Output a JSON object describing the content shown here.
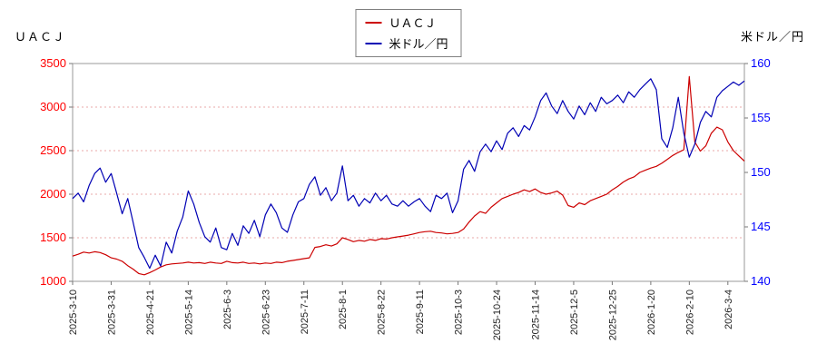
{
  "page": {
    "title_left": "ＵＡＣＪ",
    "title_right": "米ドル／円"
  },
  "legend": {
    "items": [
      {
        "label": "ＵＡＣＪ",
        "color": "#cc0000"
      },
      {
        "label": "米ドル／円",
        "color": "#0000b4"
      }
    ]
  },
  "chart_data": {
    "type": "line",
    "title": "",
    "grid": true,
    "grid_color": "#e8a8a8",
    "border_color": "#999999",
    "x_tick_labels": [
      "2025-3-10",
      "2025-3-31",
      "2025-4-21",
      "2025-5-14",
      "2025-6-3",
      "2025-6-23",
      "2025-7-11",
      "2025-8-1",
      "2025-8-22",
      "2025-9-11",
      "2025-10-3",
      "2025-10-24",
      "2025-11-14",
      "2025-12-5",
      "2025-12-25",
      "2026-1-20",
      "2026-2-10",
      "2026-3-4"
    ],
    "tick_every": 7,
    "left_axis": {
      "label": "ＵＡＣＪ",
      "min": 1000,
      "max": 3500,
      "ticks": [
        1000,
        1500,
        2000,
        2500,
        3000,
        3500
      ],
      "color": "#ff0000"
    },
    "right_axis": {
      "label": "米ドル／円",
      "min": 140,
      "max": 160,
      "ticks": [
        140,
        145,
        150,
        155,
        160
      ],
      "color": "#0000ff"
    },
    "series": [
      {
        "name": "ＵＡＣＪ",
        "axis": "left",
        "color": "#cc0000",
        "values": [
          1290,
          1310,
          1335,
          1325,
          1340,
          1330,
          1305,
          1270,
          1255,
          1230,
          1180,
          1140,
          1090,
          1075,
          1100,
          1130,
          1165,
          1190,
          1200,
          1205,
          1210,
          1220,
          1210,
          1215,
          1205,
          1220,
          1210,
          1205,
          1230,
          1215,
          1210,
          1220,
          1205,
          1210,
          1200,
          1210,
          1205,
          1220,
          1215,
          1230,
          1240,
          1250,
          1260,
          1270,
          1390,
          1400,
          1420,
          1405,
          1430,
          1500,
          1480,
          1455,
          1470,
          1460,
          1480,
          1470,
          1490,
          1485,
          1500,
          1510,
          1520,
          1530,
          1545,
          1560,
          1570,
          1575,
          1560,
          1555,
          1545,
          1550,
          1560,
          1600,
          1680,
          1750,
          1800,
          1780,
          1850,
          1900,
          1950,
          1975,
          2000,
          2020,
          2050,
          2030,
          2060,
          2020,
          2000,
          2015,
          2035,
          1990,
          1870,
          1850,
          1900,
          1880,
          1925,
          1950,
          1975,
          2000,
          2050,
          2090,
          2140,
          2175,
          2200,
          2250,
          2275,
          2300,
          2320,
          2355,
          2400,
          2445,
          2480,
          2510,
          3350,
          2600,
          2495,
          2555,
          2700,
          2770,
          2740,
          2600,
          2500,
          2440,
          2380
        ]
      },
      {
        "name": "米ドル／円",
        "axis": "right",
        "color": "#0000b4",
        "values": [
          147.6,
          148.1,
          147.3,
          148.8,
          149.9,
          150.4,
          149.1,
          149.9,
          148.1,
          146.2,
          147.6,
          145.4,
          143.1,
          142.2,
          141.2,
          142.4,
          141.4,
          143.6,
          142.6,
          144.6,
          145.9,
          148.3,
          147.1,
          145.4,
          144.1,
          143.6,
          144.9,
          143.1,
          142.9,
          144.4,
          143.3,
          145.1,
          144.4,
          145.6,
          144.1,
          146.1,
          147.1,
          146.3,
          144.9,
          144.5,
          146.1,
          147.3,
          147.6,
          148.9,
          149.6,
          147.9,
          148.6,
          147.4,
          148.1,
          150.6,
          147.4,
          147.9,
          146.9,
          147.6,
          147.2,
          148.1,
          147.4,
          147.9,
          147.1,
          146.9,
          147.4,
          146.9,
          147.3,
          147.6,
          146.9,
          146.4,
          147.9,
          147.6,
          148.1,
          146.3,
          147.4,
          150.3,
          151.1,
          150.1,
          151.9,
          152.6,
          151.9,
          152.9,
          152.1,
          153.6,
          154.1,
          153.3,
          154.3,
          153.9,
          155.1,
          156.6,
          157.3,
          156.1,
          155.4,
          156.6,
          155.6,
          154.9,
          156.1,
          155.3,
          156.4,
          155.6,
          156.9,
          156.3,
          156.6,
          157.1,
          156.4,
          157.4,
          156.9,
          157.6,
          158.1,
          158.6,
          157.6,
          153.1,
          152.3,
          154.1,
          156.9,
          153.6,
          151.4,
          152.6,
          154.6,
          155.6,
          155.1,
          156.9,
          157.5,
          157.9,
          158.3,
          158.0,
          158.4
        ]
      }
    ]
  }
}
